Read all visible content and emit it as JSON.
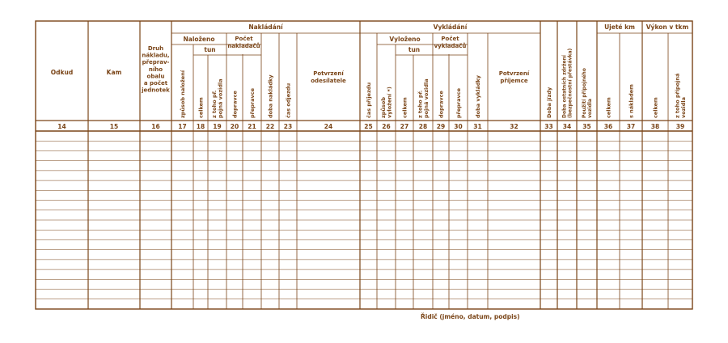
{
  "colors": {
    "ink": "#7a4518"
  },
  "header": {
    "odkud": "Odkud",
    "kam": "Kam",
    "druh": [
      "Druh",
      "nákladu,",
      "přeprav-",
      "ního",
      "obalu",
      "a počet",
      "jednotek"
    ],
    "nakladani": "Nakládání",
    "nalozeno": "Naloženo",
    "pocet_nakl": [
      "Počet",
      "nakladačů"
    ],
    "tun_nakl": "tun",
    "zpusob_nalozeni": "způsob naložení",
    "celkem_nakl": "celkem",
    "z_toho_nakl": [
      "z toho př.",
      "pojná vozidla"
    ],
    "dopravce_nakl": "dopravce",
    "prepravce_nakl": "přepravce",
    "doba_nakladky": "doba nakládky",
    "cas_odjezdu": "čas odjezdu",
    "potvrzeni_odesilatele": [
      "Potvrzení",
      "odesílatele"
    ],
    "vykladani": "Vykládání",
    "vylozeno": "Vyloženo",
    "pocet_vykl": [
      "Počet",
      "vykladačů"
    ],
    "tun_vykl": "tun",
    "cas_prijezdu": "čas příjezdu",
    "zpusob_vylozeni": [
      "způsob",
      "vyložení *)"
    ],
    "celkem_vykl": "celkem",
    "z_toho_vykl": [
      "z toho př.",
      "pojná vozidla"
    ],
    "dopravce_vykl": "dopravce",
    "prepravce_vykl": "přepravce",
    "doba_vykladky": "doba vykládky",
    "potvrzeni_prijemce": [
      "Potvrzení",
      "příjemce"
    ],
    "doba_jizdy": "Doba jízdy",
    "doba_ostatnich": [
      "Doba ostatních zdržení",
      "(bezpečnostní přestávka)"
    ],
    "pouziti_vozidla": [
      "Použití přípojného",
      "vozidla"
    ],
    "ujete_km": "Ujeté km",
    "celkem_km": "celkem",
    "s_nakladem": "s nákladem",
    "vykon": "Výkon v tkm",
    "celkem_tkm": "celkem",
    "z_toho_tkm": [
      "z toho přípojná",
      "vozidla"
    ]
  },
  "column_numbers": [
    "14",
    "15",
    "16",
    "17",
    "18",
    "19",
    "20",
    "21",
    "22",
    "23",
    "24",
    "25",
    "26",
    "27",
    "28",
    "29",
    "30",
    "31",
    "32",
    "33",
    "34",
    "35",
    "36",
    "37",
    "38",
    "39"
  ],
  "data_rows": 18,
  "footer": {
    "ridic": "Řidič (jméno, datum, podpis)"
  }
}
